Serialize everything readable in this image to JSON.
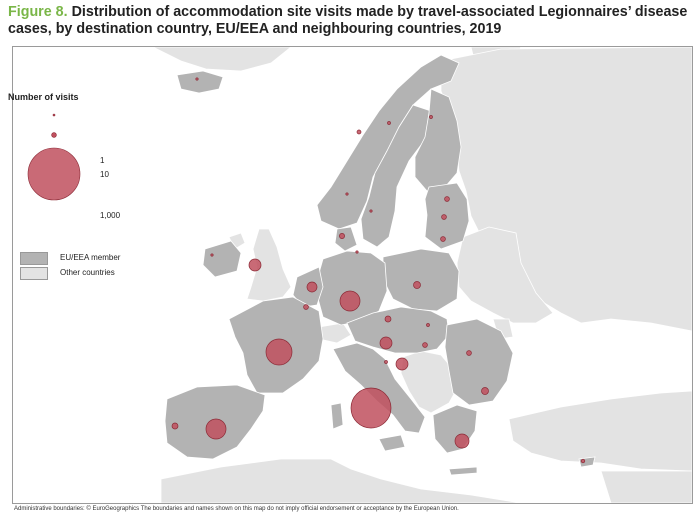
{
  "title": {
    "figure_label": "Figure 8.",
    "text": "Distribution of accommodation site visits made by travel-associated Legionnaires’ disease cases, by destination country, EU/EEA and neighbouring countries, 2019"
  },
  "legend": {
    "title": "Number of visits",
    "size_items": [
      {
        "label": "1",
        "value": 1
      },
      {
        "label": "10",
        "value": 10
      },
      {
        "label": "1,000",
        "value": 1000
      }
    ],
    "categories": [
      {
        "label": "EU/EEA member",
        "color": "#b3b3b3"
      },
      {
        "label": "Other countries",
        "color": "#e3e3e3"
      }
    ]
  },
  "colors": {
    "sea": "#ffffff",
    "eu_member": "#b3b3b3",
    "other": "#e3e3e3",
    "border": "#ffffff",
    "bubble_fill": "#c0505e",
    "bubble_stroke": "#8b2a36"
  },
  "footnote": "Administrative boundaries: © EuroGeographics The boundaries and names shown on this map do not imply official endorsement or acceptance by the European Union."
}
